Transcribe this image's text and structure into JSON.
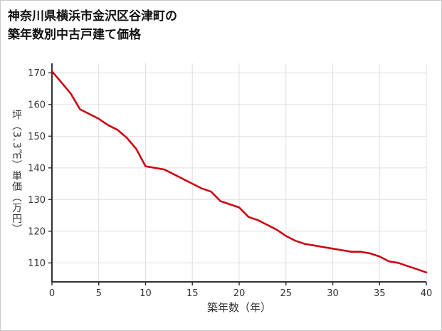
{
  "page": {
    "background": "#ffffff",
    "border_color": "#c9c9c9"
  },
  "title": {
    "line1": "神奈川県横浜市金沢区谷津町の",
    "line2": "築年数別中古戸建て価格"
  },
  "chart_data": {
    "type": "line",
    "title": "神奈川県横浜市金沢区谷津町の築年数別中古戸建て価格",
    "xlabel": "築年数（年）",
    "ylabel": "坪（3.3㎡）単価（万円）",
    "x": [
      0,
      1,
      2,
      3,
      4,
      5,
      6,
      7,
      8,
      9,
      10,
      11,
      12,
      13,
      14,
      15,
      16,
      17,
      18,
      19,
      20,
      21,
      22,
      23,
      24,
      25,
      26,
      27,
      28,
      29,
      30,
      31,
      32,
      33,
      34,
      35,
      36,
      37,
      38,
      39,
      40
    ],
    "y": [
      170.5,
      167,
      163.5,
      158.5,
      157,
      155.5,
      153.5,
      152,
      149.5,
      146,
      140.5,
      140,
      139.5,
      138,
      136.5,
      135,
      133.5,
      132.5,
      129.5,
      128.5,
      127.5,
      124.5,
      123.5,
      122,
      120.5,
      118.5,
      117,
      116,
      115.5,
      115,
      114.5,
      114,
      113.5,
      113.5,
      113,
      112,
      110.5,
      110,
      109,
      108,
      107
    ],
    "xlim": [
      0,
      40
    ],
    "ylim": [
      104,
      173
    ],
    "xticks": [
      0,
      5,
      10,
      15,
      20,
      25,
      30,
      35,
      40
    ],
    "yticks": [
      110,
      120,
      130,
      140,
      150,
      160,
      170
    ],
    "grid": true,
    "legend": "none",
    "line_color": "#cc0612",
    "grid_color": "#e0e0e0",
    "axis_color": "#333333",
    "tick_label_color": "#333333"
  }
}
